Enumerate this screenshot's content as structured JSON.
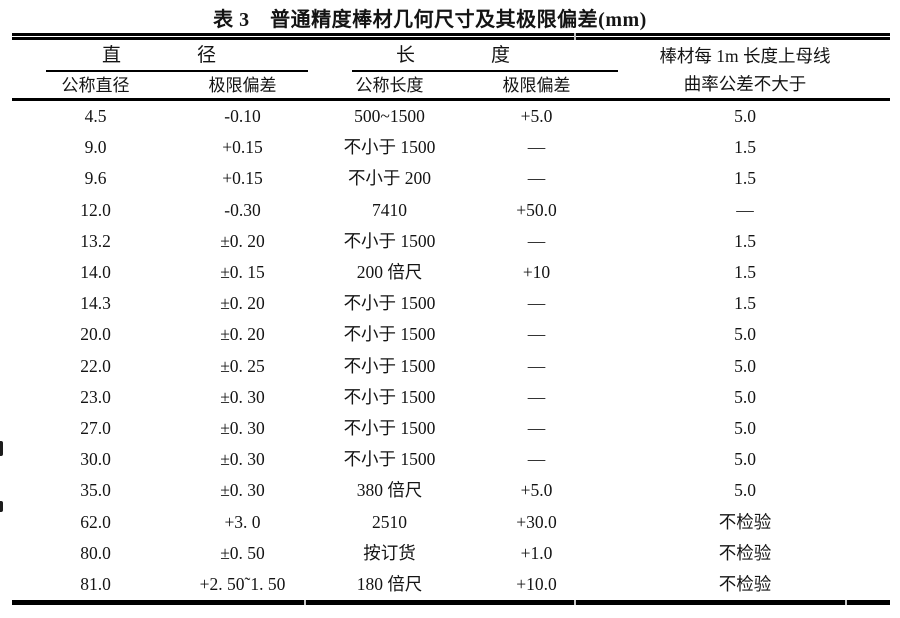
{
  "title": "表 3　普通精度棒材几何尺寸及其极限偏差(mm)",
  "colors": {
    "text": "#141414",
    "rule": "#000000",
    "background": "#ffffff"
  },
  "table": {
    "groups": {
      "diameter": "直　　　　径",
      "length": "长　　　　度",
      "curvature_line1": "棒材每 1m 长度上母线",
      "curvature_line2": "曲率公差不大于"
    },
    "columns": [
      "公称直径",
      "极限偏差",
      "公称长度",
      "极限偏差"
    ],
    "rows": [
      [
        "4.5",
        "-0.10",
        "500~1500",
        "+5.0",
        "5.0"
      ],
      [
        "9.0",
        "+0.15",
        "不小于 1500",
        "—",
        "1.5"
      ],
      [
        "9.6",
        "+0.15",
        "不小于 200",
        "—",
        "1.5"
      ],
      [
        "12.0",
        "-0.30",
        "7410",
        "+50.0",
        "—"
      ],
      [
        "13.2",
        "±0. 20",
        "不小于 1500",
        "—",
        "1.5"
      ],
      [
        "14.0",
        "±0. 15",
        "200 倍尺",
        "+10",
        "1.5"
      ],
      [
        "14.3",
        "±0. 20",
        "不小于 1500",
        "—",
        "1.5"
      ],
      [
        "20.0",
        "±0. 20",
        "不小于 1500",
        "—",
        "5.0"
      ],
      [
        "22.0",
        "±0. 25",
        "不小于 1500",
        "—",
        "5.0"
      ],
      [
        "23.0",
        "±0. 30",
        "不小于 1500",
        "—",
        "5.0"
      ],
      [
        "27.0",
        "±0. 30",
        "不小于 1500",
        "—",
        "5.0"
      ],
      [
        "30.0",
        "±0. 30",
        "不小于 1500",
        "—",
        "5.0"
      ],
      [
        "35.0",
        "±0. 30",
        "380 倍尺",
        "+5.0",
        "5.0"
      ],
      [
        "62.0",
        "+3. 0",
        "2510",
        "+30.0",
        "不检验"
      ],
      [
        "80.0",
        "±0. 50",
        "按订货",
        "+1.0",
        "不检验"
      ],
      [
        "81.0",
        "+2. 50˜1. 50",
        "180 倍尺",
        "+10.0",
        "不检验"
      ]
    ]
  }
}
